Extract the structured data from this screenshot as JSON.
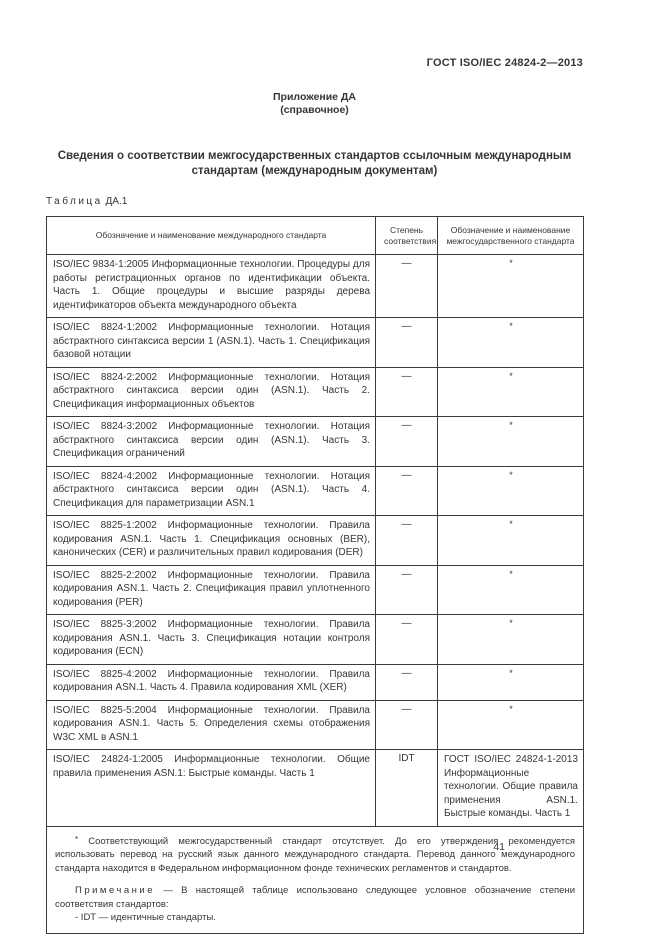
{
  "page": {
    "doc_number": "ГОСТ ISO/IEC 24824-2—2013",
    "annex": {
      "line1": "Приложение ДА",
      "line2": "(справочное)"
    },
    "title": "Сведения о соответствии межгосударственных стандартов ссылочным международным стандартам (международным документам)",
    "page_number": "41"
  },
  "table": {
    "caption_word": "Таблица",
    "caption_number": "ДА.1",
    "headers": [
      "Обозначение и наименование международного стандарта",
      "Степень соответствия",
      "Обозначение и наименование межгосударственного стандарта"
    ],
    "rows": [
      {
        "intl": "ISO/IEC 9834-1:2005 Информационные технологии. Процедуры для работы регистрационных органов по идентификации объекта. Часть 1. Общие процедуры и высшие разряды дерева идентификаторов объекта международного объекта",
        "degree": "—",
        "gost": "*"
      },
      {
        "intl": "ISO/IEC 8824-1:2002 Информационные технологии. Нотация абстрактного синтаксиса версии 1 (ASN.1). Часть 1. Спецификация базовой нотации",
        "degree": "—",
        "gost": "*"
      },
      {
        "intl": "ISO/IEC 8824-2:2002 Информационные технологии. Нотация абстрактного синтаксиса версии один (ASN.1). Часть 2. Спецификация информационных объектов",
        "degree": "—",
        "gost": "*"
      },
      {
        "intl": "ISO/IEC 8824-3:2002 Информационные технологии. Нотация абстрактного синтаксиса версии один (ASN.1). Часть 3. Спецификация ограничений",
        "degree": "—",
        "gost": "*"
      },
      {
        "intl": "ISO/IEC 8824-4:2002 Информационные технологии. Нотация абстрактного синтаксиса версии один (ASN.1). Часть 4. Спецификация для параметризации ASN.1",
        "degree": "—",
        "gost": "*"
      },
      {
        "intl": "ISO/IEC 8825-1:2002 Информационные технологии. Правила кодирования ASN.1. Часть 1. Спецификация основных (BER), канонических (CER) и различительных правил кодирования (DER)",
        "degree": "—",
        "gost": "*"
      },
      {
        "intl": "ISO/IEC 8825-2:2002 Информационные технологии. Правила кодирования ASN.1. Часть 2. Спецификация правил уплотненного кодирования (PER)",
        "degree": "—",
        "gost": "*"
      },
      {
        "intl": "ISO/IEC 8825-3:2002 Информационные технологии. Правила кодирования ASN.1. Часть 3. Спецификация нотации контроля кодирования (ECN)",
        "degree": "—",
        "gost": "*"
      },
      {
        "intl": "ISO/IEC 8825-4:2002 Информационные технологии. Правила кодирования ASN.1. Часть 4. Правила кодирования XML (XER)",
        "degree": "—",
        "gost": "*"
      },
      {
        "intl": "ISO/IEC 8825-5:2004 Информационные технологии. Правила кодирования ASN.1. Часть 5. Определения схемы отображения W3C XML в ASN.1",
        "degree": "—",
        "gost": "*"
      },
      {
        "intl": "ISO/IEC 24824-1:2005 Информационные технологии. Общие правила применения ASN.1: Быстрые команды. Часть 1",
        "degree": "IDT",
        "gost": "ГОСТ ISO/IEC 24824-1-2013 Информационные технологии. Общие правила применения ASN.1. Быстрые команды. Часть 1"
      }
    ],
    "footnote": {
      "marker": "*",
      "text": "Соответствующий межгосударственный стандарт отсутствует. До его утверждения рекомендуется использовать перевод на русский язык данного международного стандарта. Перевод данного международного стандарта находится в Федеральном информационном фонде технических регламентов и стандартов."
    },
    "note": {
      "label": "Примечание",
      "text": "— В настоящей таблице использовано следующее условное обозначение степени соответствия стандартов:",
      "items": [
        "- IDT — идентичные стандарты."
      ]
    }
  }
}
